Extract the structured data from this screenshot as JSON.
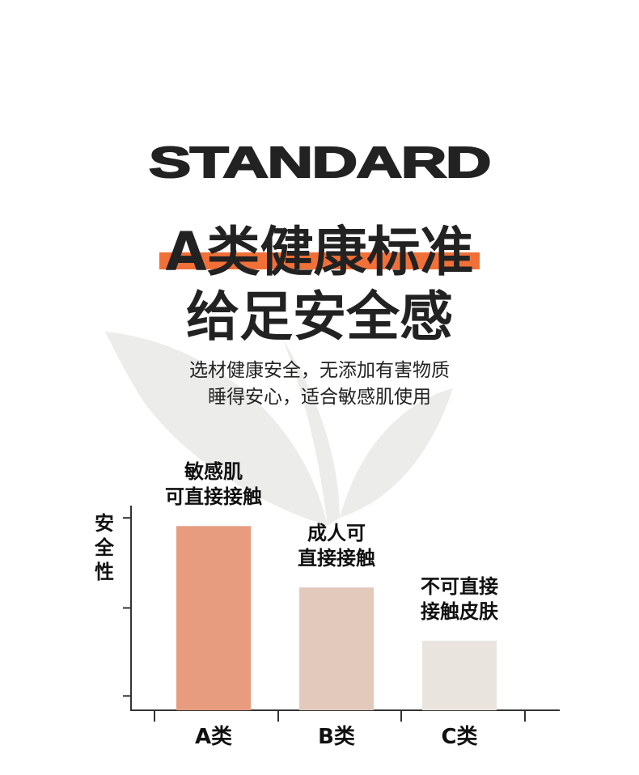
{
  "header": {
    "eyebrow": "STANDARD",
    "title": "A类健康标准",
    "title_line2": "给足安全感",
    "highlight_color": "#f07038"
  },
  "subtitle": {
    "line1": "选材健康安全，无添加有害物质",
    "line2": "睡得安心，适合敏感肌使用"
  },
  "chart_data": {
    "type": "bar",
    "categories": [
      "A类",
      "B类",
      "C类"
    ],
    "values": [
      90,
      60,
      34
    ],
    "colors": [
      "#E89C7F",
      "#E3C8BC",
      "#E9E5DE"
    ],
    "annotations": [
      [
        "敏感肌",
        "可直接接触"
      ],
      [
        "成人可",
        "直接接触"
      ],
      [
        "不可直接",
        "接触皮肤"
      ]
    ],
    "ylabel": "安全性",
    "xlabel": "",
    "ylim": [
      0,
      100
    ],
    "yticks": [
      7,
      50,
      94
    ],
    "grid": false
  }
}
